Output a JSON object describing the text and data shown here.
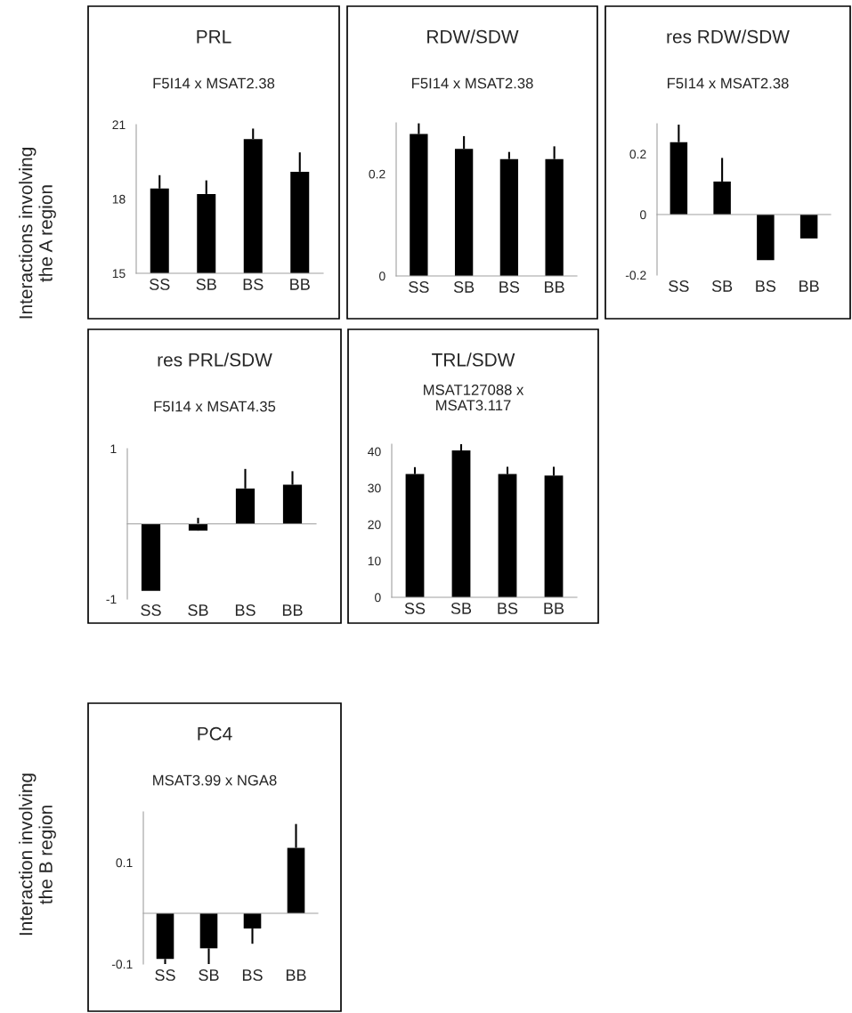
{
  "chart_data": [
    {
      "type": "bar",
      "title": "PRL",
      "subtitle": "F5I14 x MSAT2.38",
      "categories": [
        "SS",
        "SB",
        "BS",
        "BB"
      ],
      "values": [
        18.42,
        18.2,
        20.42,
        19.1
      ],
      "errors": [
        [
          18.42,
          18.96
        ],
        [
          18.2,
          18.75
        ],
        [
          20.42,
          20.84
        ],
        [
          19.1,
          19.88
        ]
      ],
      "color": "#000000",
      "ylim": [
        15,
        21
      ],
      "yticks": [
        15,
        18,
        21
      ],
      "annotations": [
        "Interactions involving\nthe A region"
      ]
    },
    {
      "type": "bar",
      "title": "RDW/SDW",
      "subtitle": "F5I14 x MSAT2.38",
      "categories": [
        "SS",
        "SB",
        "BS",
        "BB"
      ],
      "values": [
        0.278,
        0.249,
        0.229,
        0.229
      ],
      "errors": [
        [
          0.278,
          0.299
        ],
        [
          0.249,
          0.274
        ],
        [
          0.229,
          0.243
        ],
        [
          0.229,
          0.254
        ]
      ],
      "color": "#000000",
      "ylim": [
        0,
        0.3
      ],
      "yticks": [
        0,
        0.2
      ]
    },
    {
      "type": "bar",
      "title": "res RDW/SDW",
      "subtitle": "F5I14 x MSAT2.38",
      "categories": [
        "SS",
        "SB",
        "BS",
        "BB"
      ],
      "values": [
        0.239,
        0.109,
        -0.151,
        -0.079
      ],
      "errors": [
        [
          0.239,
          0.297
        ],
        [
          0.109,
          0.187
        ],
        null,
        null
      ],
      "color": "#000000",
      "ylim": [
        -0.2,
        0.3
      ],
      "yticks": [
        -0.2,
        0,
        0.2
      ]
    },
    {
      "type": "bar",
      "title": "res PRL/SDW",
      "subtitle": "F5I14 x MSAT4.35",
      "categories": [
        "SS",
        "SB",
        "BS",
        "BB"
      ],
      "values": [
        -0.89,
        -0.09,
        0.47,
        0.52
      ],
      "errors": [
        null,
        [
          -0.09,
          0.08
        ],
        [
          0.47,
          0.73
        ],
        [
          0.52,
          0.7
        ]
      ],
      "color": "#000000",
      "ylim": [
        -1,
        1
      ],
      "yticks": [
        -1,
        1
      ]
    },
    {
      "type": "bar",
      "title": "TRL/SDW",
      "subtitle": "MSAT127088 x\nMSAT3.117",
      "categories": [
        "SS",
        "SB",
        "BS",
        "BB"
      ],
      "values": [
        33.8,
        40.3,
        33.8,
        33.4
      ],
      "errors": [
        [
          33.8,
          35.7
        ],
        [
          40.3,
          42
        ],
        [
          33.8,
          35.8
        ],
        [
          33.4,
          35.8
        ]
      ],
      "color": "#000000",
      "ylim": [
        0,
        42
      ],
      "yticks": [
        0,
        10,
        20,
        30,
        40
      ]
    },
    {
      "type": "bar",
      "title": "PC4",
      "subtitle": "MSAT3.99 x NGA8",
      "categories": [
        "SS",
        "SB",
        "BS",
        "BB"
      ],
      "values": [
        -0.09,
        -0.069,
        -0.03,
        0.129
      ],
      "errors": [
        [
          -0.1,
          -0.09
        ],
        [
          -0.1,
          -0.069
        ],
        [
          -0.06,
          -0.03
        ],
        [
          0.129,
          0.176
        ]
      ],
      "color": "#000000",
      "ylim": [
        -0.1,
        0.2
      ],
      "yticks": [
        -0.1,
        0.1
      ],
      "annotations": [
        "Interaction involving\nthe B region"
      ]
    }
  ]
}
